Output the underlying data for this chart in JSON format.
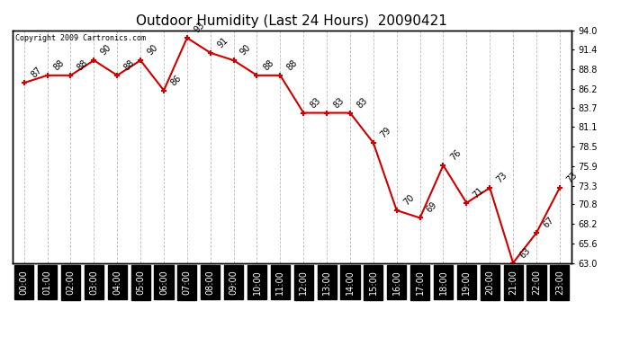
{
  "title": "Outdoor Humidity (Last 24 Hours)  20090421",
  "copyright": "Copyright 2009 Cartronics.com",
  "x_labels": [
    "00:00",
    "01:00",
    "02:00",
    "03:00",
    "04:00",
    "05:00",
    "06:00",
    "07:00",
    "08:00",
    "09:00",
    "10:00",
    "11:00",
    "12:00",
    "13:00",
    "14:00",
    "15:00",
    "16:00",
    "17:00",
    "18:00",
    "19:00",
    "20:00",
    "21:00",
    "22:00",
    "23:00"
  ],
  "y_values": [
    87,
    88,
    88,
    90,
    88,
    90,
    86,
    93,
    91,
    90,
    88,
    88,
    83,
    83,
    83,
    79,
    70,
    69,
    76,
    71,
    73,
    63,
    67,
    73
  ],
  "y_labels_right": [
    "94.0",
    "91.4",
    "88.8",
    "86.2",
    "83.7",
    "81.1",
    "78.5",
    "75.9",
    "73.3",
    "70.8",
    "68.2",
    "65.6",
    "63.0"
  ],
  "y_min": 63.0,
  "y_max": 94.0,
  "line_color": "#cc0000",
  "marker_color": "#cc0000",
  "bg_color": "#ffffff",
  "grid_color": "#bbbbbb",
  "title_fontsize": 11,
  "label_fontsize": 7,
  "annotation_fontsize": 7
}
